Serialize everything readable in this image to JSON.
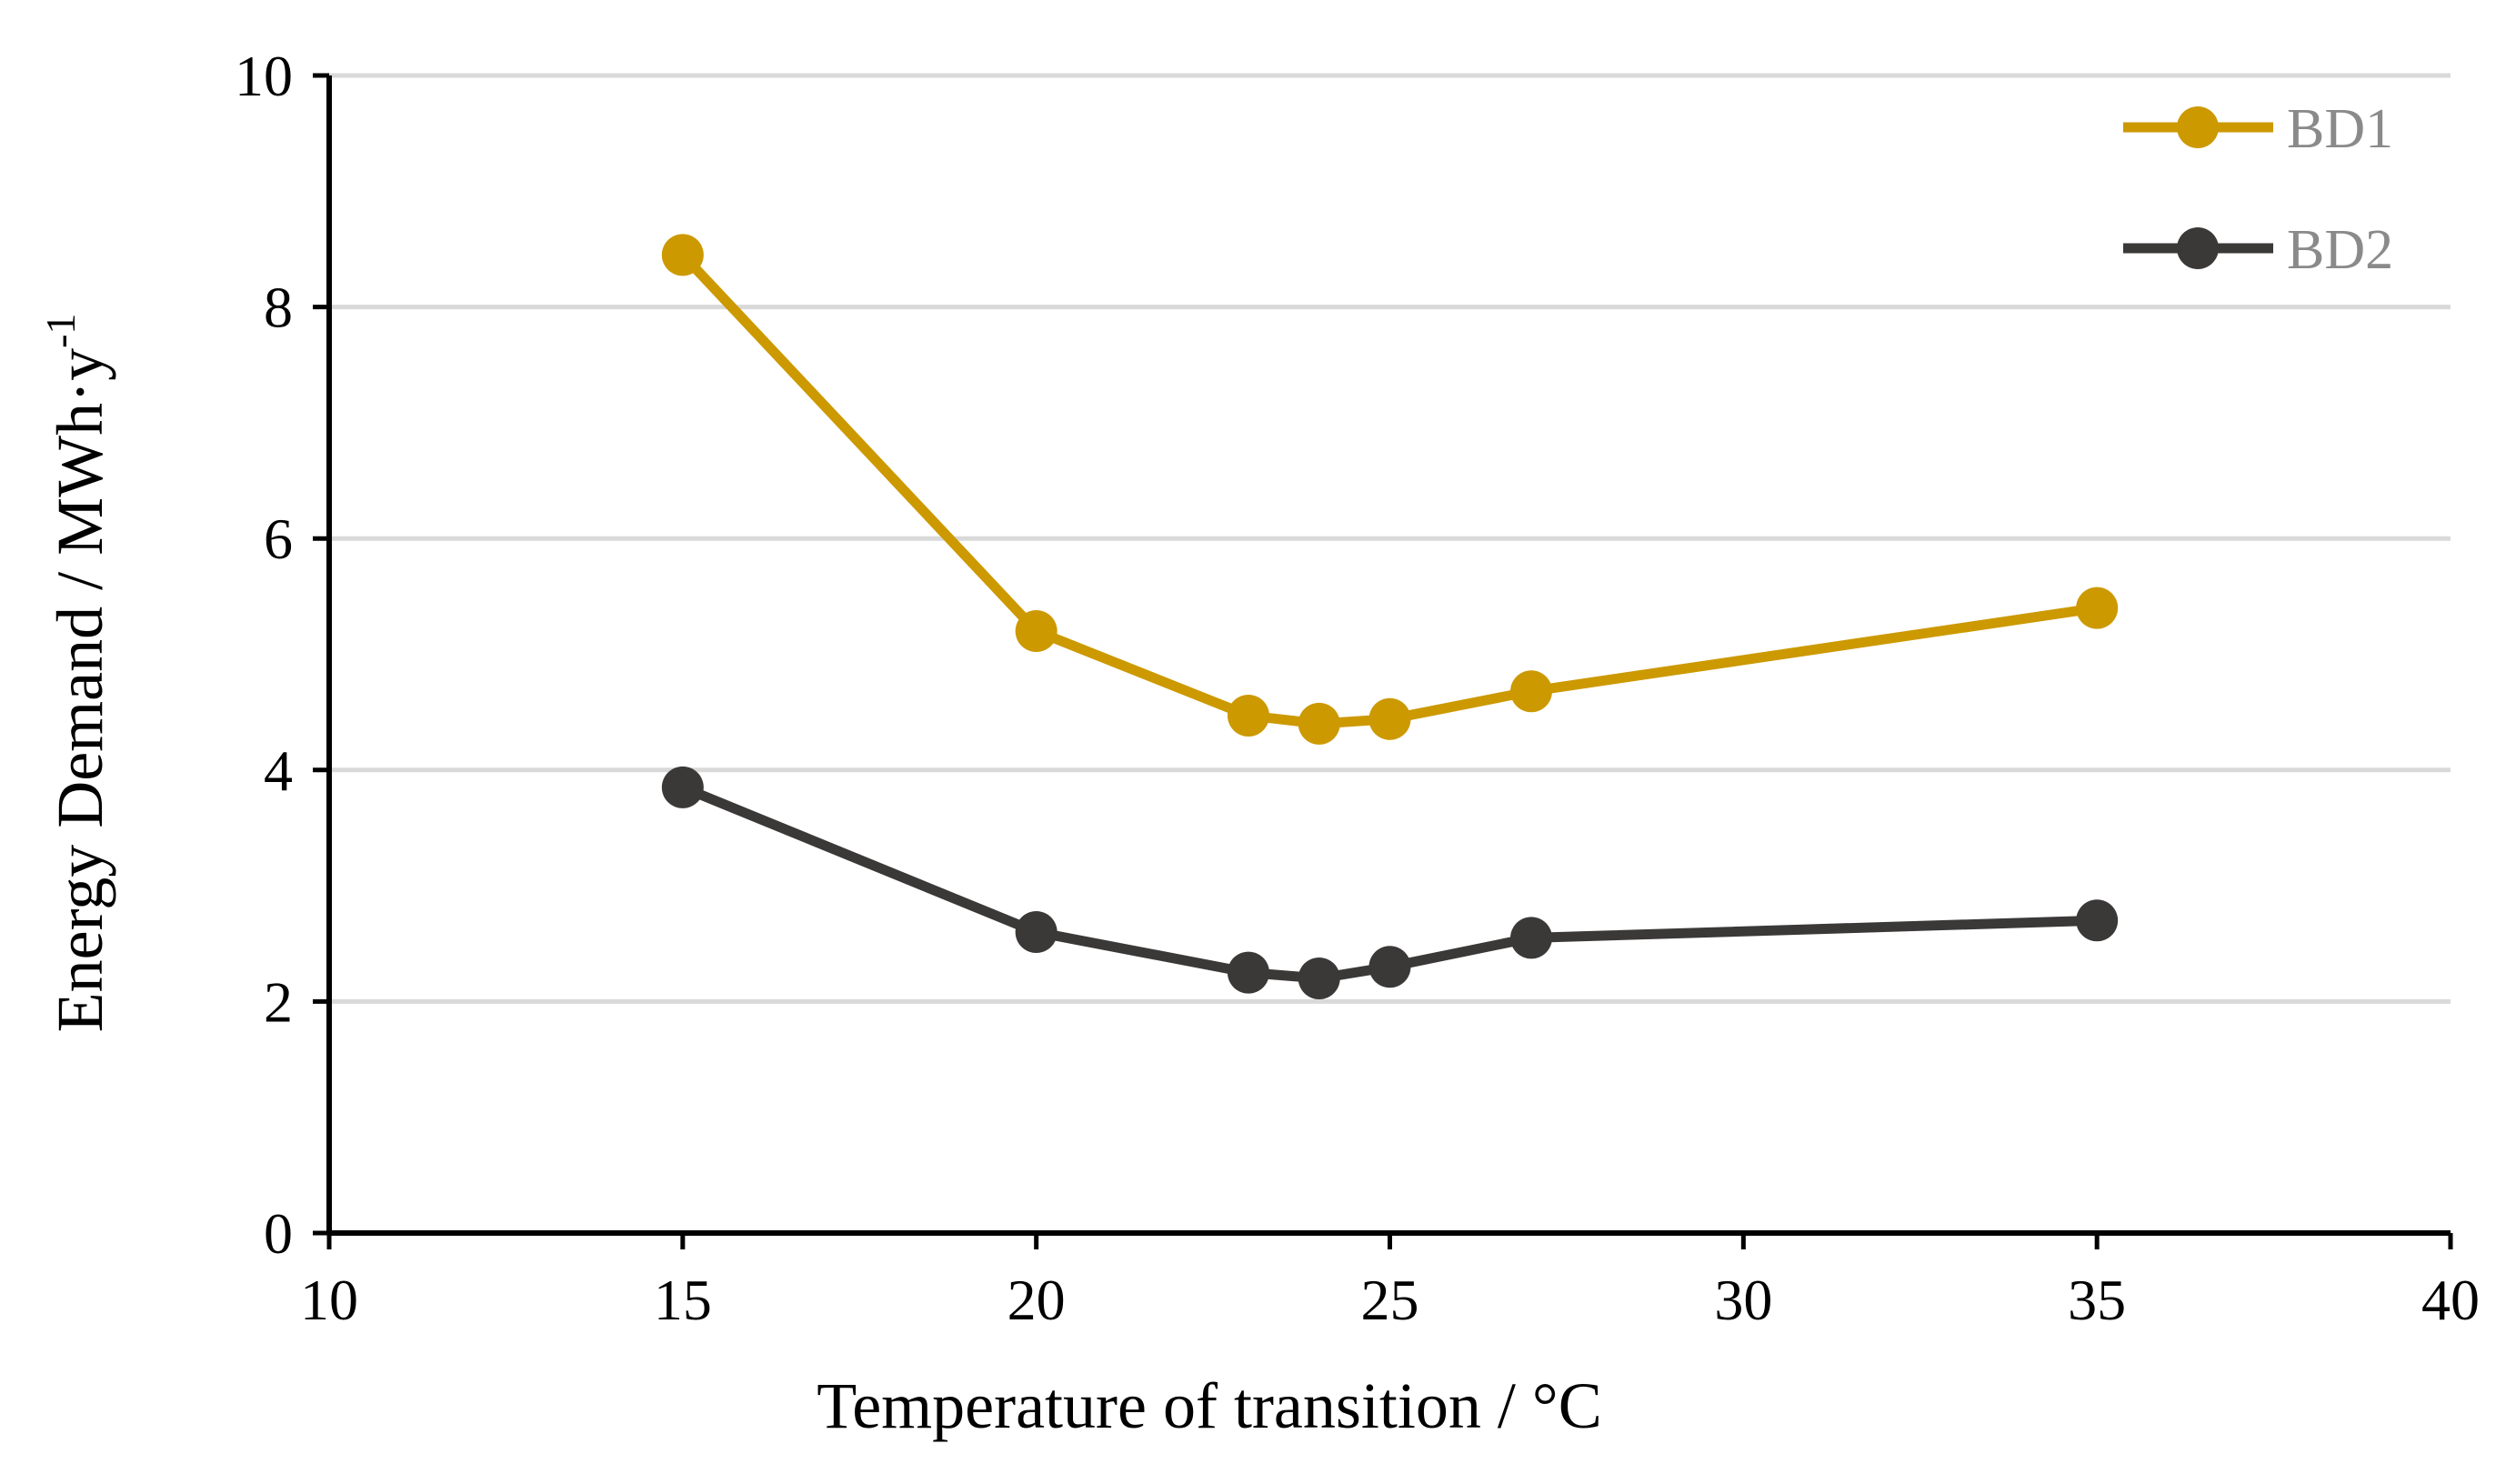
{
  "chart_data": {
    "type": "line",
    "title": "",
    "xlabel": "Temperature of transition / °C",
    "ylabel": {
      "main": "Energy Demand /  MWh·y",
      "superscript": "-1"
    },
    "xlim": [
      10,
      40
    ],
    "ylim": [
      0,
      10
    ],
    "xticks": [
      "10",
      "15",
      "20",
      "25",
      "30",
      "35",
      "40"
    ],
    "yticks": [
      "0",
      "2",
      "4",
      "6",
      "8",
      "10"
    ],
    "grid": "horizontal",
    "legend_position": "top-right",
    "x": [
      15,
      20,
      23,
      24,
      25,
      27,
      35
    ],
    "series": [
      {
        "name": "BD1",
        "color": "#CC9900",
        "values": [
          8.45,
          5.2,
          4.47,
          4.4,
          4.44,
          4.68,
          5.4
        ]
      },
      {
        "name": "BD2",
        "color": "#3B3838",
        "values": [
          3.85,
          2.6,
          2.25,
          2.2,
          2.3,
          2.55,
          2.7
        ]
      }
    ]
  }
}
